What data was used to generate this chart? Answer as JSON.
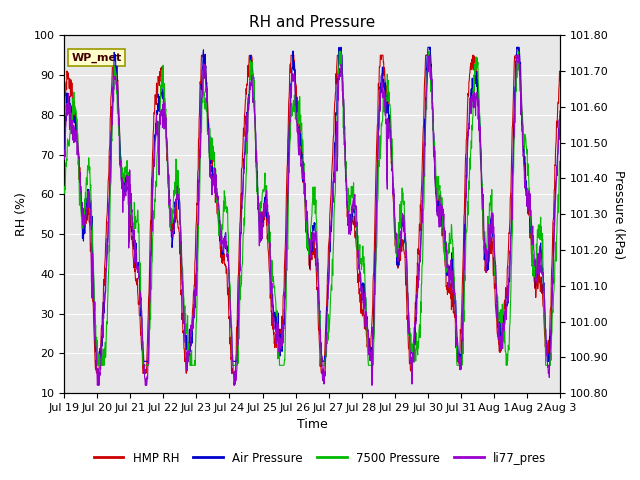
{
  "title": "RH and Pressure",
  "xlabel": "Time",
  "ylabel_left": "RH (%)",
  "ylabel_right": "Pressure (kPa)",
  "ylim_left": [
    10,
    100
  ],
  "ylim_right": [
    100.8,
    101.8
  ],
  "background_color": "#ffffff",
  "plot_bg_color": "#e8e8e8",
  "annotation_text": "WP_met",
  "annotation_bg": "#ffffcc",
  "annotation_border": "#999900",
  "legend": [
    "HMP RH",
    "Air Pressure",
    "7500 Pressure",
    "li77_pres"
  ],
  "legend_colors": [
    "#cc0000",
    "#0000cc",
    "#00bb00",
    "#9900cc"
  ],
  "title_fontsize": 11,
  "tick_label_fontsize": 8,
  "axis_label_fontsize": 9,
  "n_points": 1500,
  "x_tick_labels": [
    "Jul 19",
    "Jul 20",
    "Jul 21",
    "Jul 22",
    "Jul 23",
    "Jul 24",
    "Jul 25",
    "Jul 26",
    "Jul 27",
    "Jul 28",
    "Jul 29",
    "Jul 30",
    "Jul 31",
    "Aug 1",
    "Aug 2",
    "Aug 3"
  ],
  "x_tick_positions": [
    0,
    1,
    2,
    3,
    4,
    5,
    6,
    7,
    8,
    9,
    10,
    11,
    12,
    13,
    14,
    15
  ],
  "yticks_left": [
    10,
    20,
    30,
    40,
    50,
    60,
    70,
    80,
    90,
    100
  ],
  "yticks_right": [
    100.8,
    100.9,
    101.0,
    101.1,
    101.2,
    101.3,
    101.4,
    101.5,
    101.6,
    101.7,
    101.8
  ],
  "linewidth": 0.8
}
